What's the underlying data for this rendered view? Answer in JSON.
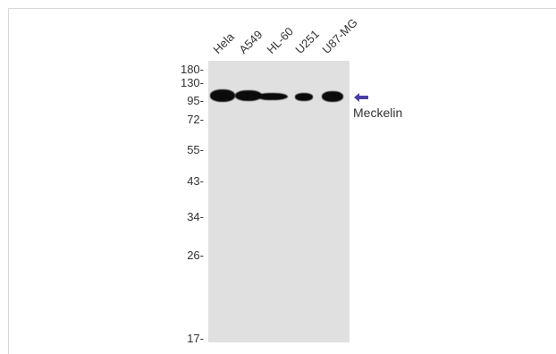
{
  "lanes": [
    "Hela",
    "A549",
    "HL-60",
    "U251",
    "U87-MG"
  ],
  "markers": [
    "180-",
    "130-",
    "95-",
    "72-",
    "55-",
    "43-",
    "34-",
    "26-",
    "17-"
  ],
  "protein": "Meckelin",
  "colors": {
    "background": "#ffffff",
    "membrane": "#e0e0e0",
    "band": "#0b0b0b",
    "arrow": "#4a3fa5"
  }
}
